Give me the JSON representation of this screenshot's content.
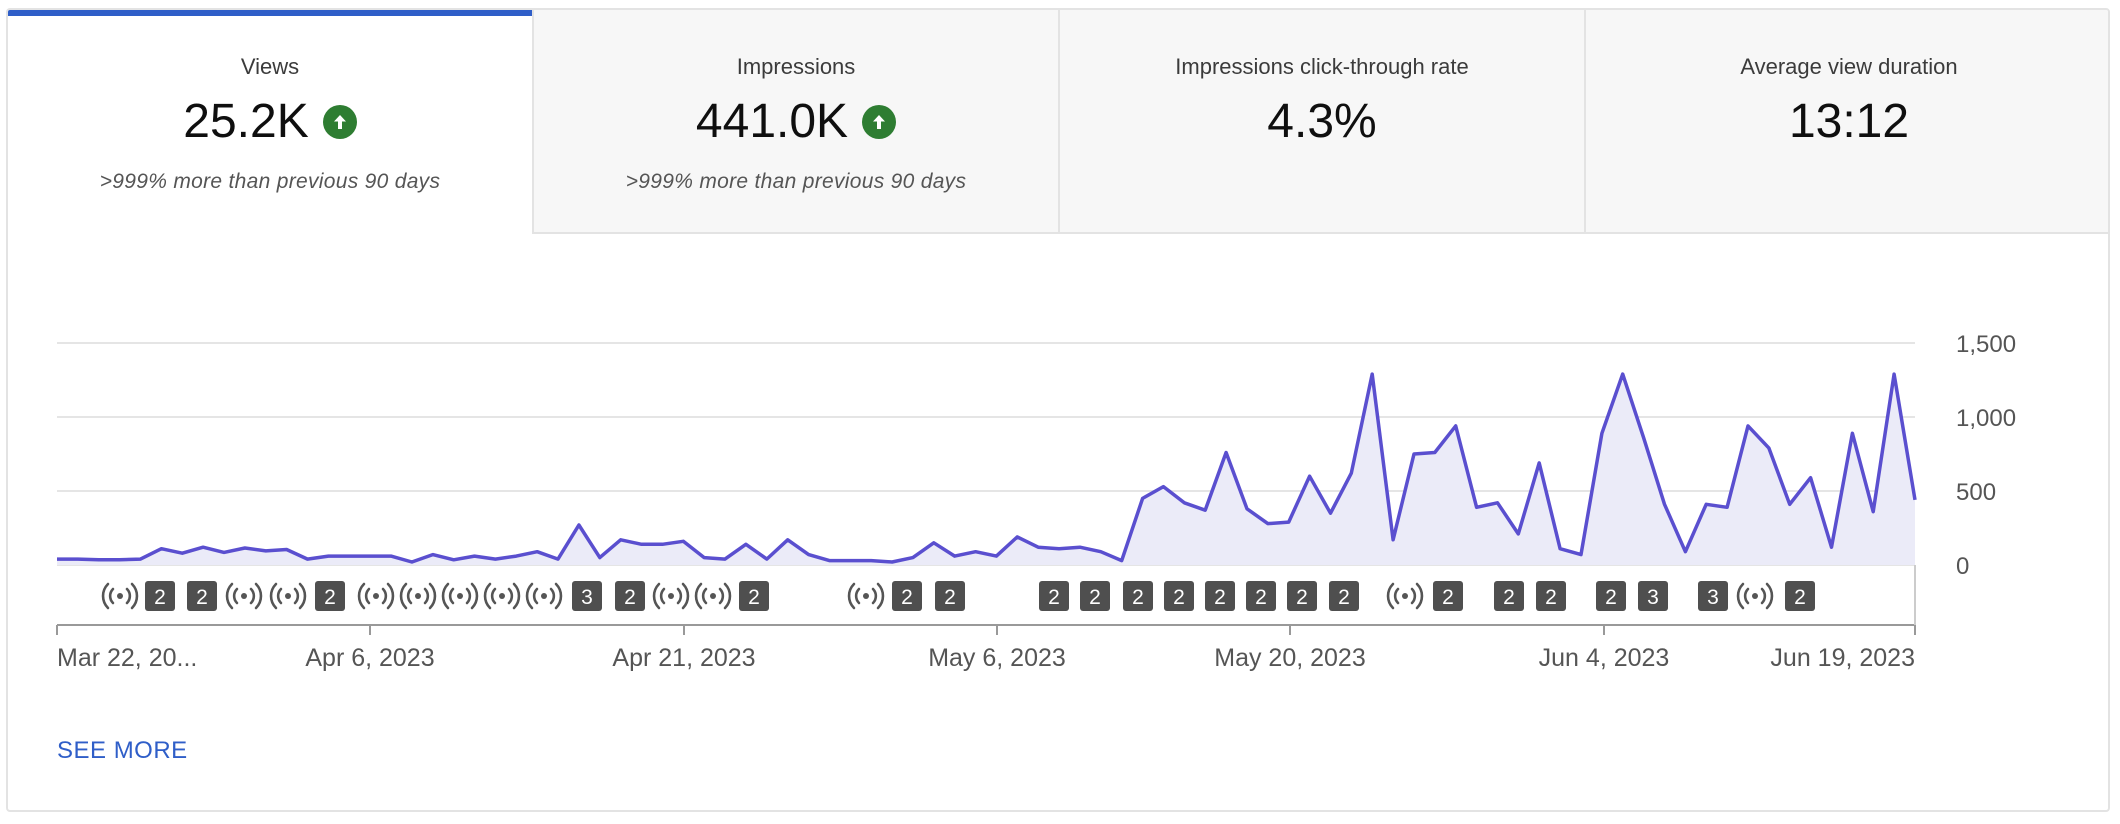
{
  "tabs": [
    {
      "label": "Views",
      "value": "25.2K",
      "trend_icon": "arrow-up-circle-icon",
      "comparison": ">999% more than previous 90 days",
      "active": true
    },
    {
      "label": "Impressions",
      "value": "441.0K",
      "trend_icon": "arrow-up-circle-icon",
      "comparison": ">999% more than previous 90 days",
      "active": false
    },
    {
      "label": "Impressions click-through rate",
      "value": "4.3%",
      "trend_icon": "",
      "comparison": "",
      "active": false
    },
    {
      "label": "Average view duration",
      "value": "13:12",
      "trend_icon": "",
      "comparison": "",
      "active": false
    }
  ],
  "chart_data": {
    "type": "area",
    "series": [
      {
        "values": [
          40,
          40,
          35,
          35,
          40,
          110,
          80,
          120,
          85,
          115,
          95,
          105,
          40,
          60,
          60,
          60,
          60,
          20,
          70,
          35,
          60,
          40,
          60,
          90,
          40,
          270,
          50,
          170,
          140,
          140,
          160,
          50,
          40,
          140,
          40,
          170,
          70,
          30,
          30,
          30,
          20,
          50,
          150,
          60,
          90,
          60,
          190,
          120,
          110,
          120,
          90,
          30,
          450,
          530,
          420,
          370,
          760,
          380,
          280,
          290,
          600,
          350,
          620,
          1290,
          170,
          750,
          760,
          940,
          390,
          420,
          210,
          690,
          110,
          70,
          890,
          1290,
          860,
          410,
          90,
          410,
          390,
          940,
          790,
          410,
          590,
          120,
          890,
          360,
          1290,
          440
        ]
      }
    ],
    "x_ticks": [
      "Mar 22, 20...",
      "Apr 6, 2023",
      "Apr 21, 2023",
      "May 6, 2023",
      "May 20, 2023",
      "Jun 4, 2023",
      "Jun 19, 2023"
    ],
    "y_ticks": [
      "1,500",
      "1,000",
      "500",
      "0"
    ],
    "ylim": [
      0,
      1500
    ],
    "grid": true,
    "line_color": "#5a4fcf",
    "fill_color": "#ebebf8",
    "markers": [
      {
        "type": "live",
        "label": ""
      },
      {
        "type": "count",
        "label": "2"
      },
      {
        "type": "count",
        "label": "2"
      },
      {
        "type": "live",
        "label": ""
      },
      {
        "type": "live",
        "label": ""
      },
      {
        "type": "count",
        "label": "2"
      },
      {
        "type": "live",
        "label": ""
      },
      {
        "type": "live",
        "label": ""
      },
      {
        "type": "live",
        "label": ""
      },
      {
        "type": "live",
        "label": ""
      },
      {
        "type": "live",
        "label": ""
      },
      {
        "type": "count",
        "label": "3"
      },
      {
        "type": "count",
        "label": "2"
      },
      {
        "type": "live",
        "label": ""
      },
      {
        "type": "live",
        "label": ""
      },
      {
        "type": "count",
        "label": "2"
      },
      {
        "type": "live",
        "label": ""
      },
      {
        "type": "count",
        "label": "2"
      },
      {
        "type": "count",
        "label": "2"
      },
      {
        "type": "count",
        "label": "2"
      },
      {
        "type": "count",
        "label": "2"
      },
      {
        "type": "count",
        "label": "2"
      },
      {
        "type": "count",
        "label": "2"
      },
      {
        "type": "count",
        "label": "2"
      },
      {
        "type": "count",
        "label": "2"
      },
      {
        "type": "count",
        "label": "2"
      },
      {
        "type": "count",
        "label": "2"
      },
      {
        "type": "live",
        "label": ""
      },
      {
        "type": "count",
        "label": "2"
      },
      {
        "type": "count",
        "label": "2"
      },
      {
        "type": "count",
        "label": "2"
      },
      {
        "type": "count",
        "label": "2"
      },
      {
        "type": "count",
        "label": "3"
      },
      {
        "type": "count",
        "label": "3"
      },
      {
        "type": "live",
        "label": ""
      },
      {
        "type": "count",
        "label": "2"
      }
    ]
  },
  "see_more": "SEE MORE",
  "accent_color": "#2f5ec8",
  "trend_color": "#2e7d32"
}
